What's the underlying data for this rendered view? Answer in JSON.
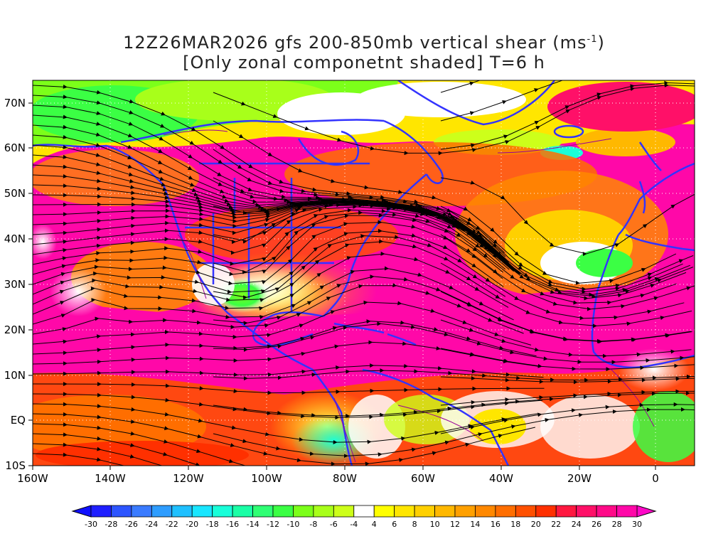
{
  "title": {
    "line1_main": "12Z26MAR2026 gfs 200-850mb vertical shear (ms",
    "line1_sup": "-1",
    "line1_end": ")",
    "line2": "[Only zonal componetnt shaded] T=6 h"
  },
  "map": {
    "lat_labels": [
      "70N",
      "60N",
      "50N",
      "40N",
      "30N",
      "20N",
      "10N",
      "EQ",
      "10S"
    ],
    "lon_labels": [
      "160W",
      "140W",
      "120W",
      "100W",
      "80W",
      "60W",
      "40W",
      "20W",
      "0"
    ],
    "lat_range": [
      -10,
      75
    ],
    "lon_range": [
      -160,
      10
    ],
    "shading_variable": "zonal vertical shear (m/s)",
    "streamlines": "black",
    "coastlines_color": "#3333ff",
    "grid": "dotted"
  },
  "colorbar": {
    "labels": [
      "-30",
      "-28",
      "-26",
      "-24",
      "-22",
      "-20",
      "-18",
      "-16",
      "-14",
      "-12",
      "-10",
      "-8",
      "-6",
      "-4",
      "4",
      "6",
      "8",
      "10",
      "12",
      "14",
      "16",
      "18",
      "20",
      "22",
      "24",
      "26",
      "28",
      "30"
    ],
    "colors": [
      "#1f1fff",
      "#2d55ff",
      "#3a7bff",
      "#2e9dff",
      "#1fc0ff",
      "#19e6ff",
      "#19ffd9",
      "#1affa6",
      "#2fff74",
      "#3bff44",
      "#7cff1a",
      "#a8ff1a",
      "#cdff1a",
      "#ffffff",
      "#ffff00",
      "#ffe600",
      "#ffd000",
      "#ffb800",
      "#ffa000",
      "#ff8800",
      "#ff6e00",
      "#ff5000",
      "#ff3000",
      "#ff1840",
      "#ff1068",
      "#ff0a88",
      "#ff08a8"
    ]
  }
}
